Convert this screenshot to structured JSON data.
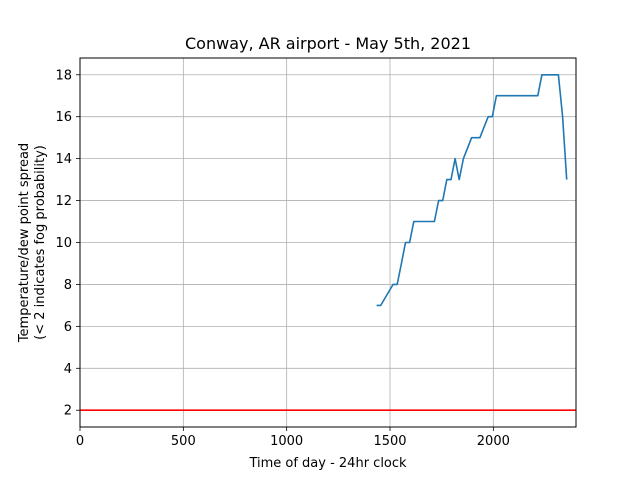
{
  "chart_data": {
    "type": "line",
    "title": "Conway, AR airport - May 5th, 2021",
    "xlabel": "Time of day - 24hr clock",
    "ylabel_lines": [
      "Temperature/dew point spread",
      "(< 2 indicates fog probability)"
    ],
    "xlim": [
      0,
      2400
    ],
    "ylim": [
      1.2,
      18.8
    ],
    "xticks": [
      0,
      500,
      1000,
      1500,
      2000
    ],
    "yticks": [
      2,
      4,
      6,
      8,
      10,
      12,
      14,
      16,
      18
    ],
    "grid": true,
    "series": [
      {
        "color": "#1f77b4",
        "x": [
          1435,
          1455,
          1515,
          1535,
          1555,
          1575,
          1595,
          1615,
          1635,
          1655,
          1675,
          1695,
          1715,
          1735,
          1755,
          1775,
          1795,
          1815,
          1835,
          1855,
          1875,
          1895,
          1915,
          1935,
          1955,
          1975,
          1995,
          2015,
          2035,
          2055,
          2075,
          2095,
          2115,
          2135,
          2155,
          2175,
          2195,
          2215,
          2235,
          2255,
          2275,
          2295,
          2315,
          2335,
          2355
        ],
        "y": [
          7,
          7,
          8,
          8,
          9,
          10,
          10,
          11,
          11,
          11,
          11,
          11,
          11,
          12,
          12,
          13,
          13,
          14,
          13,
          14,
          14.5,
          15,
          15,
          15,
          15.5,
          16,
          16,
          17,
          17,
          17,
          17,
          17,
          17,
          17,
          17,
          17,
          17,
          17,
          18,
          18,
          18,
          18,
          18,
          16,
          13
        ]
      }
    ],
    "reference_line": {
      "y": 2,
      "color": "#ff0000"
    }
  }
}
